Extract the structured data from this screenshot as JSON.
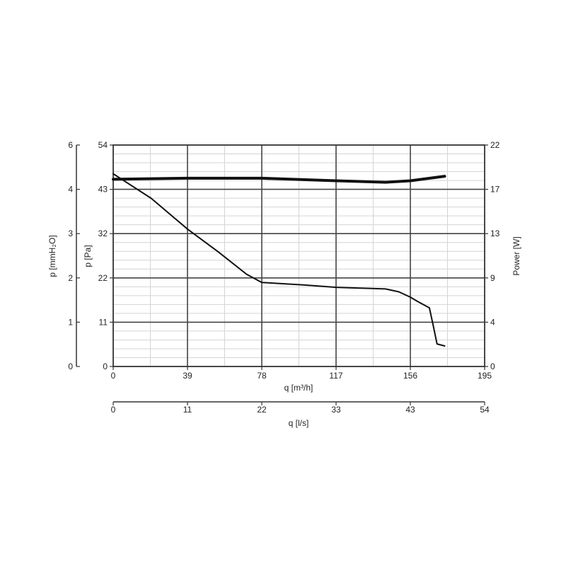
{
  "chart_data": {
    "type": "line",
    "x_axis_main": {
      "label": "q [m³/h]",
      "range": [
        0,
        195
      ],
      "ticks": [
        "0",
        "39",
        "78",
        "117",
        "156",
        "195"
      ]
    },
    "x_axis_secondary": {
      "label": "q [l/s]",
      "range": [
        0,
        54
      ],
      "ticks": [
        "0",
        "11",
        "22",
        "33",
        "43",
        "54"
      ]
    },
    "y_axis_left_outer": {
      "label": "p [mmH₂O]",
      "range": [
        0,
        6
      ],
      "ticks": [
        "0",
        "1",
        "2",
        "3",
        "4",
        "6"
      ]
    },
    "y_axis_left_inner": {
      "label": "p [Pa]",
      "range": [
        0,
        54
      ],
      "ticks": [
        "0",
        "11",
        "22",
        "32",
        "43",
        "54"
      ]
    },
    "y_axis_right": {
      "label": "Power [W]",
      "range": [
        0,
        22
      ],
      "ticks": [
        "0",
        "4",
        "9",
        "13",
        "17",
        "22"
      ]
    },
    "grid": true,
    "series": [
      {
        "axis": "pressure",
        "stroke": "#111111",
        "points": [
          [
            0,
            47
          ],
          [
            20,
            41
          ],
          [
            39,
            33.5
          ],
          [
            55,
            28
          ],
          [
            70,
            22.5
          ],
          [
            78,
            20.5
          ],
          [
            100,
            19.9
          ],
          [
            117,
            19.3
          ],
          [
            130,
            19.1
          ],
          [
            143,
            18.9
          ],
          [
            150,
            18.2
          ],
          [
            156,
            16.9
          ],
          [
            160,
            15.8
          ],
          [
            166,
            14.3
          ],
          [
            168,
            10
          ],
          [
            170,
            5.5
          ],
          [
            174,
            5
          ]
        ]
      },
      {
        "axis": "power",
        "stroke": "#111111",
        "points": [
          [
            0,
            18.6
          ],
          [
            39,
            18.7
          ],
          [
            78,
            18.7
          ],
          [
            117,
            18.45
          ],
          [
            143,
            18.3
          ],
          [
            156,
            18.45
          ],
          [
            174,
            18.9
          ]
        ]
      }
    ]
  }
}
